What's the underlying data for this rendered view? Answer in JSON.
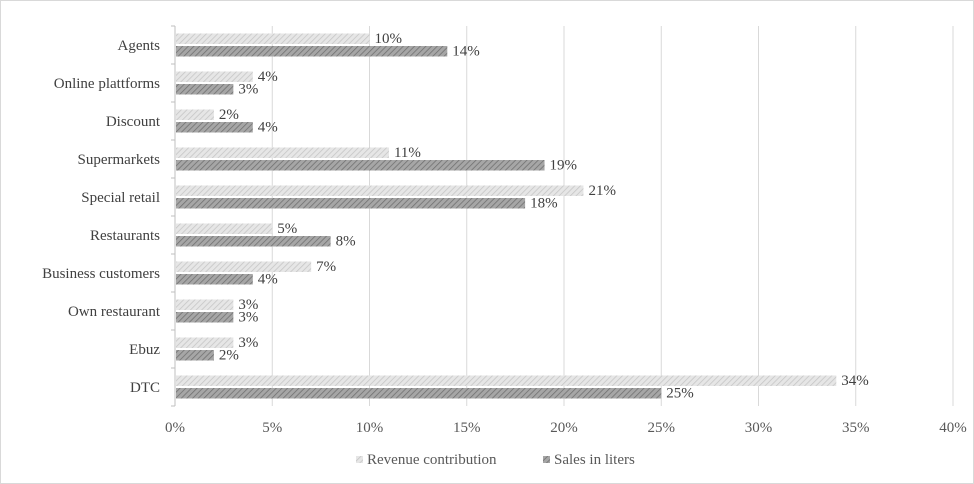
{
  "chart_data": {
    "type": "bar",
    "orientation": "horizontal",
    "categories": [
      "Agents",
      "Online plattforms",
      "Discount",
      "Supermarkets",
      "Special retail",
      "Restaurants",
      "Business customers",
      "Own restaurant",
      "Ebuz",
      "DTC"
    ],
    "series": [
      {
        "name": "Revenue contribution",
        "values": [
          10,
          4,
          2,
          11,
          21,
          5,
          7,
          3,
          3,
          34
        ],
        "labels": [
          "10%",
          "4%",
          "2%",
          "11%",
          "21%",
          "5%",
          "7%",
          "3%",
          "3%",
          "34%"
        ],
        "color": "#d9d9d9",
        "pattern": "light-diagonal-hatch"
      },
      {
        "name": "Sales in liters",
        "values": [
          14,
          3,
          4,
          19,
          18,
          8,
          4,
          3,
          2,
          25
        ],
        "labels": [
          "14%",
          "3%",
          "4%",
          "19%",
          "18%",
          "8%",
          "4%",
          "3%",
          "2%",
          "25%"
        ],
        "color": "#8c8c8c",
        "pattern": "dark-diagonal-hatch"
      }
    ],
    "xlim": [
      0,
      40
    ],
    "x_ticks": [
      0,
      5,
      10,
      15,
      20,
      25,
      30,
      35,
      40
    ],
    "x_tick_labels": [
      "0%",
      "5%",
      "10%",
      "15%",
      "20%",
      "25%",
      "30%",
      "35%",
      "40%"
    ],
    "grid": "vertical",
    "legend_position": "bottom",
    "title": "",
    "xlabel": "",
    "ylabel": ""
  }
}
